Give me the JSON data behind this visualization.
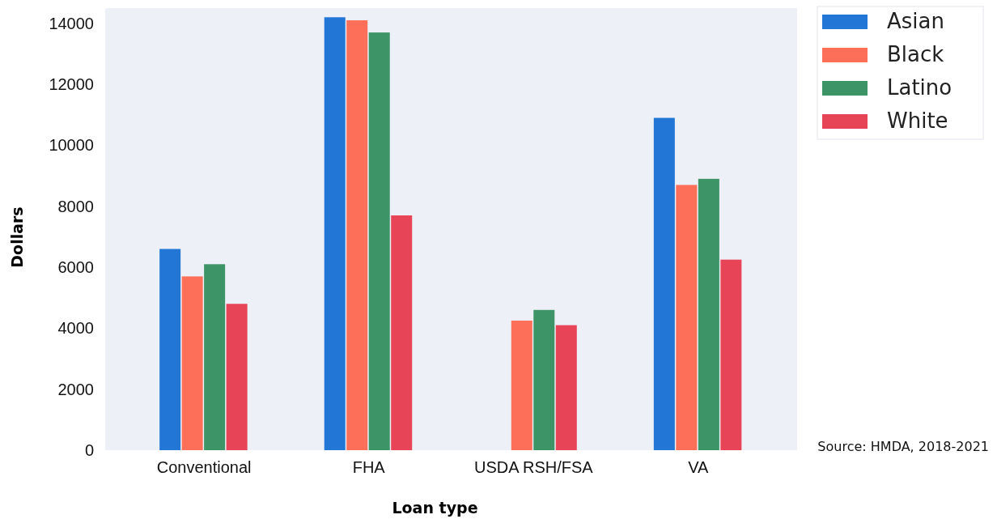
{
  "chart_data": {
    "type": "bar",
    "xlabel": "Loan type",
    "ylabel": "Dollars",
    "categories": [
      "Conventional",
      "FHA",
      "USDA RSH/FSA",
      "VA"
    ],
    "series": [
      {
        "name": "Asian",
        "color": "#2277d6",
        "values": [
          6600,
          14200,
          null,
          10900
        ]
      },
      {
        "name": "Black",
        "color": "#fe6f5a",
        "values": [
          5700,
          14100,
          4250,
          8700
        ]
      },
      {
        "name": "Latino",
        "color": "#3d9467",
        "values": [
          6100,
          13700,
          4600,
          8900
        ]
      },
      {
        "name": "White",
        "color": "#e84457",
        "values": [
          4800,
          7700,
          4100,
          6250
        ]
      }
    ],
    "ylim": [
      0,
      14500
    ],
    "yticks": [
      0,
      2000,
      4000,
      6000,
      8000,
      10000,
      12000,
      14000
    ],
    "legend": "top right",
    "annotations": [
      "Source: HMDA, 2018-2021"
    ]
  }
}
